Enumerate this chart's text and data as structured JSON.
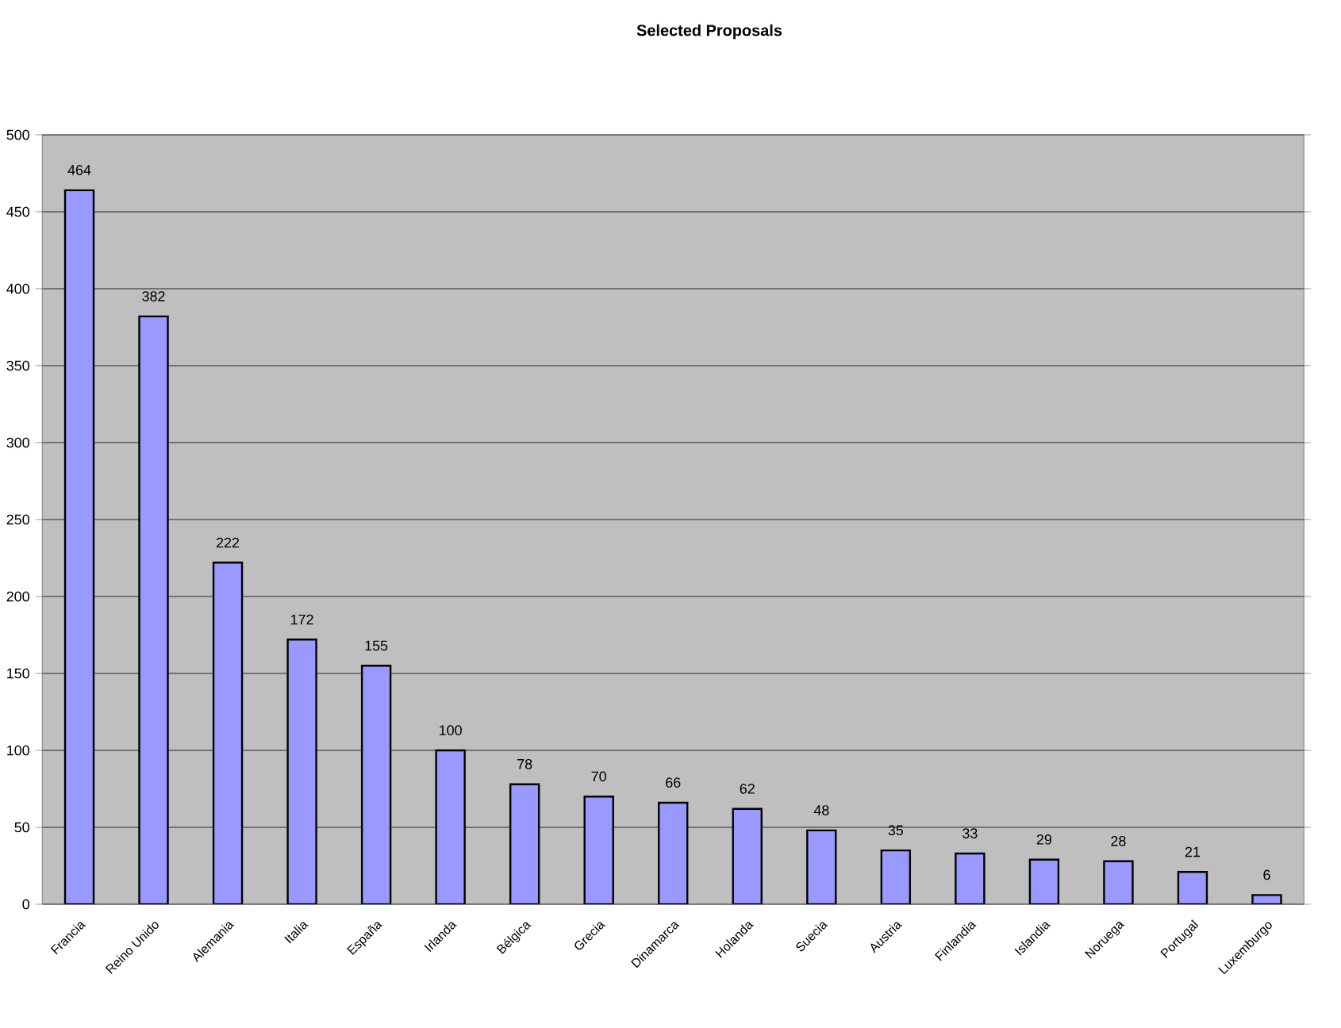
{
  "chart_data": {
    "type": "bar",
    "title": "Selected Proposals",
    "categories": [
      "Francia",
      "Reino Unido",
      "Alemania",
      "Italia",
      "España",
      "Irlanda",
      "Bélgica",
      "Grecia",
      "Dinamarca",
      "Holanda",
      "Suecia",
      "Austria",
      "Finlandia",
      "Islandia",
      "Noruega",
      "Portugal",
      "Luxemburgo"
    ],
    "values": [
      464,
      382,
      222,
      172,
      155,
      100,
      78,
      70,
      66,
      62,
      48,
      35,
      33,
      29,
      28,
      21,
      6
    ],
    "color": "#9999ff",
    "ylim": [
      0,
      500
    ],
    "yticks": [
      0,
      50,
      100,
      150,
      200,
      250,
      300,
      350,
      400,
      450,
      500
    ],
    "grid": "y",
    "data_labels": true
  }
}
